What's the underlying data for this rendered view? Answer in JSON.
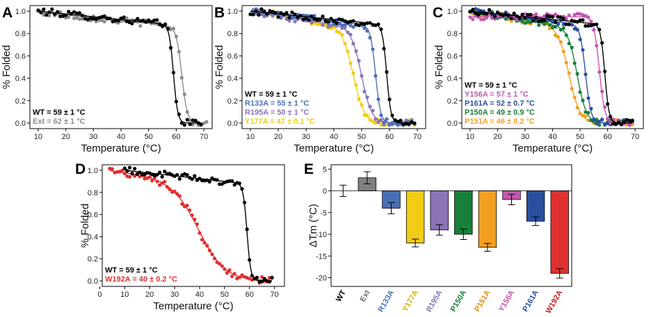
{
  "chart_data": [
    {
      "panel": "A",
      "type": "scatter",
      "xlabel": "Temperature (°C)",
      "ylabel": "% Folded",
      "xlim": [
        7,
        73
      ],
      "ylim": [
        -0.05,
        1.05
      ],
      "xticks": [
        "10",
        "20",
        "30",
        "40",
        "50",
        "60",
        "70"
      ],
      "yticks": [
        "0.0",
        "0.2",
        "0.4",
        "0.6",
        "0.8",
        "1.0"
      ],
      "legend_position": "bottom-left",
      "series": [
        {
          "name": "WT",
          "label": "WT = 59 ± 1 °C",
          "color": "#000000",
          "tm": 59,
          "x_start": 10,
          "x_end": 69,
          "top": 1.0,
          "slope0": 0.0025,
          "k": 1.3
        },
        {
          "name": "Ext",
          "label": "Ext = 62 ± 1 °C",
          "color": "#8c8c8c",
          "tm": 62,
          "x_start": 10,
          "x_end": 71,
          "top": 0.99,
          "slope0": 0.0025,
          "k": 1.0
        }
      ]
    },
    {
      "panel": "B",
      "type": "scatter",
      "xlabel": "Temperature (°C)",
      "ylabel": "% Folded",
      "xlim": [
        7,
        73
      ],
      "ylim": [
        -0.05,
        1.05
      ],
      "xticks": [
        "10",
        "20",
        "30",
        "40",
        "50",
        "60",
        "70"
      ],
      "yticks": [
        "0.0",
        "0.2",
        "0.4",
        "0.6",
        "0.8",
        "1.0"
      ],
      "legend_position": "bottom-left",
      "series": [
        {
          "name": "WT",
          "label": "WT = 59 ± 1 °C",
          "color": "#000000",
          "tm": 59,
          "x_start": 10,
          "x_end": 69,
          "top": 1.0,
          "slope0": 0.0025,
          "k": 1.3
        },
        {
          "name": "R133A",
          "label": "R133A = 55 ± 1 °C",
          "color": "#4a6fb5",
          "tm": 55,
          "x_start": 10,
          "x_end": 69,
          "top": 1.0,
          "slope0": 0.003,
          "k": 1.1
        },
        {
          "name": "R195A",
          "label": "R195A = 50 ± 1 °C",
          "color": "#8a74b8",
          "tm": 50,
          "x_start": 10,
          "x_end": 69,
          "top": 1.0,
          "slope0": 0.004,
          "k": 0.55
        },
        {
          "name": "Y177A",
          "label": "Y177A = 47 ± 0.1 °C",
          "color": "#f2cc14",
          "tm": 47,
          "x_start": 10,
          "x_end": 69,
          "top": 1.0,
          "slope0": 0.004,
          "k": 0.5
        }
      ]
    },
    {
      "panel": "C",
      "type": "scatter",
      "xlabel": "Temperature (°C)",
      "ylabel": "% Folded",
      "xlim": [
        7,
        73
      ],
      "ylim": [
        -0.05,
        1.05
      ],
      "xticks": [
        "10",
        "20",
        "30",
        "40",
        "50",
        "60",
        "70"
      ],
      "yticks": [
        "0.0",
        "0.2",
        "0.4",
        "0.6",
        "0.8",
        "1.0"
      ],
      "legend_position": "bottom-left",
      "series": [
        {
          "name": "WT",
          "label": "WT = 59 ± 1 °C",
          "color": "#000000",
          "tm": 59,
          "x_start": 10,
          "x_end": 69,
          "top": 1.0,
          "slope0": 0.0025,
          "k": 1.3
        },
        {
          "name": "Y156A",
          "label": "Y156A = 57 ± 1 °C",
          "color": "#c357b0",
          "tm": 57,
          "x_start": 10,
          "x_end": 69,
          "top": 0.95,
          "slope0": 0.0,
          "k": 1.0
        },
        {
          "name": "P161A",
          "label": "P161A = 52 ± 0.7 °C",
          "color": "#2b4f9e",
          "tm": 52,
          "x_start": 10,
          "x_end": 69,
          "top": 1.0,
          "slope0": 0.003,
          "k": 1.0
        },
        {
          "name": "P150A",
          "label": "P150A = 49 ± 0.9 °C",
          "color": "#17803a",
          "tm": 49,
          "x_start": 10,
          "x_end": 69,
          "top": 1.0,
          "slope0": 0.004,
          "k": 0.6
        },
        {
          "name": "P151A",
          "label": "P151A = 46 ± 0.2 °C",
          "color": "#f2a020",
          "tm": 46,
          "x_start": 10,
          "x_end": 69,
          "top": 1.0,
          "slope0": 0.004,
          "k": 0.5
        }
      ]
    },
    {
      "panel": "D",
      "type": "scatter",
      "xlabel": "Temperature (°C)",
      "ylabel": "% Folded",
      "xlim": [
        1,
        74
      ],
      "ylim": [
        -0.05,
        1.05
      ],
      "xticks": [
        "0",
        "10",
        "20",
        "30",
        "40",
        "50",
        "60",
        "70"
      ],
      "yticks": [
        "0.0",
        "0.2",
        "0.4",
        "0.6",
        "0.8",
        "1.0"
      ],
      "legend_position": "bottom-left",
      "series": [
        {
          "name": "WT",
          "label": "WT = 59 ± 1 °C",
          "color": "#000000",
          "tm": 59,
          "x_start": 10,
          "x_end": 69,
          "top": 1.0,
          "slope0": 0.0025,
          "k": 1.3
        },
        {
          "name": "W192A",
          "label": "W192A = 40 ± 0.2 °C",
          "color": "#e03030",
          "tm": 40,
          "x_start": 4,
          "x_end": 69,
          "top": 0.98,
          "slope0": 0.003,
          "k": 0.19
        }
      ]
    },
    {
      "panel": "E",
      "type": "bar",
      "ylabel": "ΔTm (°C)",
      "ylim": [
        -22,
        6
      ],
      "yticks": [
        "5",
        "0",
        "-5",
        "-10",
        "-15",
        "-20"
      ],
      "categories": [
        "WT",
        "Ext",
        "R133A",
        "Y177A",
        "R195A",
        "P150A",
        "P151A",
        "Y156A",
        "P161A",
        "W192A"
      ],
      "values": [
        0,
        3,
        -4,
        -12,
        -9,
        -10,
        -13,
        -2,
        -7,
        -19
      ],
      "errors": [
        1.3,
        1.4,
        1.3,
        0.9,
        1.2,
        1.2,
        0.9,
        1.2,
        1.0,
        1.1
      ],
      "colors": [
        "#000000",
        "#808080",
        "#4a6fb5",
        "#f2cc14",
        "#8a74b8",
        "#17803a",
        "#f2a020",
        "#c357b0",
        "#2b4f9e",
        "#e03030"
      ],
      "label_colors": [
        "#000000",
        "#707070",
        "#4a6fb5",
        "#d8b000",
        "#8a74b8",
        "#17803a",
        "#e09010",
        "#c357b0",
        "#2b4f9e",
        "#c02020"
      ]
    }
  ]
}
